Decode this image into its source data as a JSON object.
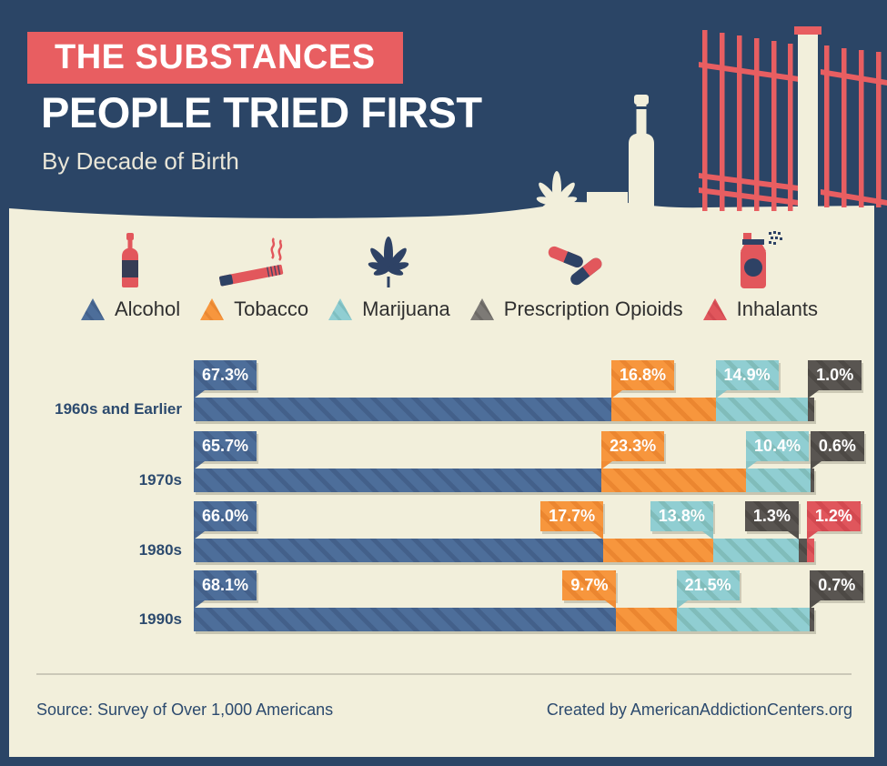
{
  "header": {
    "title_line1": "THE SUBSTANCES",
    "title_line2": "PEOPLE TRIED FIRST",
    "subtitle": "By Decade of Birth"
  },
  "colors": {
    "navy_background": "#2b4566",
    "coral_accent": "#e85e61",
    "cream_panel": "#f2efdb",
    "alcohol": "#4d6e9a",
    "tobacco": "#f7963d",
    "marijuana": "#90ced2",
    "prescription_opioids": "#595551",
    "inhalants": "#e0565c",
    "label_navy": "#2c4a6e"
  },
  "legend": {
    "items": [
      {
        "label": "Alcohol",
        "icon": "bottle-icon"
      },
      {
        "label": "Tobacco",
        "icon": "cigarette-icon"
      },
      {
        "label": "Marijuana",
        "icon": "marijuana-leaf-icon"
      },
      {
        "label": "Prescription Opioids",
        "icon": "pills-icon"
      },
      {
        "label": "Inhalants",
        "icon": "spray-can-icon"
      }
    ]
  },
  "chart_data": {
    "type": "bar",
    "orientation": "horizontal-stacked",
    "unit": "percent",
    "xlim": [
      0,
      100
    ],
    "substances": [
      "Alcohol",
      "Tobacco",
      "Marijuana",
      "Prescription Opioids",
      "Inhalants"
    ],
    "categories": [
      "1960s and Earlier",
      "1970s",
      "1980s",
      "1990s"
    ],
    "rows": [
      {
        "label": "1960s and Earlier",
        "segments": [
          {
            "substance": "Alcohol",
            "value": 67.3,
            "display": "67.3%",
            "callout_side": "left"
          },
          {
            "substance": "Tobacco",
            "value": 16.8,
            "display": "16.8%",
            "callout_side": "left"
          },
          {
            "substance": "Marijuana",
            "value": 14.9,
            "display": "14.9%",
            "callout_side": "left"
          },
          {
            "substance": "Prescription Opioids",
            "value": 1.0,
            "display": "1.0%",
            "callout_side": "left"
          }
        ]
      },
      {
        "label": "1970s",
        "segments": [
          {
            "substance": "Alcohol",
            "value": 65.7,
            "display": "65.7%",
            "callout_side": "left"
          },
          {
            "substance": "Tobacco",
            "value": 23.3,
            "display": "23.3%",
            "callout_side": "left"
          },
          {
            "substance": "Marijuana",
            "value": 10.4,
            "display": "10.4%",
            "callout_side": "left"
          },
          {
            "substance": "Prescription Opioids",
            "value": 0.6,
            "display": "0.6%",
            "callout_side": "left"
          }
        ]
      },
      {
        "label": "1980s",
        "segments": [
          {
            "substance": "Alcohol",
            "value": 66.0,
            "display": "66.0%",
            "callout_side": "left"
          },
          {
            "substance": "Tobacco",
            "value": 17.7,
            "display": "17.7%",
            "callout_side": "right"
          },
          {
            "substance": "Marijuana",
            "value": 13.8,
            "display": "13.8%",
            "callout_side": "right"
          },
          {
            "substance": "Prescription Opioids",
            "value": 1.3,
            "display": "1.3%",
            "callout_side": "right"
          },
          {
            "substance": "Inhalants",
            "value": 1.2,
            "display": "1.2%",
            "callout_side": "left"
          }
        ]
      },
      {
        "label": "1990s",
        "segments": [
          {
            "substance": "Alcohol",
            "value": 68.1,
            "display": "68.1%",
            "callout_side": "left"
          },
          {
            "substance": "Tobacco",
            "value": 9.7,
            "display": "9.7%",
            "callout_side": "right"
          },
          {
            "substance": "Marijuana",
            "value": 21.5,
            "display": "21.5%",
            "callout_side": "left"
          },
          {
            "substance": "Prescription Opioids",
            "value": 0.7,
            "display": "0.7%",
            "callout_side": "left"
          }
        ]
      }
    ]
  },
  "footer": {
    "source": "Source: Survey of Over 1,000 Americans",
    "credit": "Created by AmericanAddictionCenters.org"
  }
}
